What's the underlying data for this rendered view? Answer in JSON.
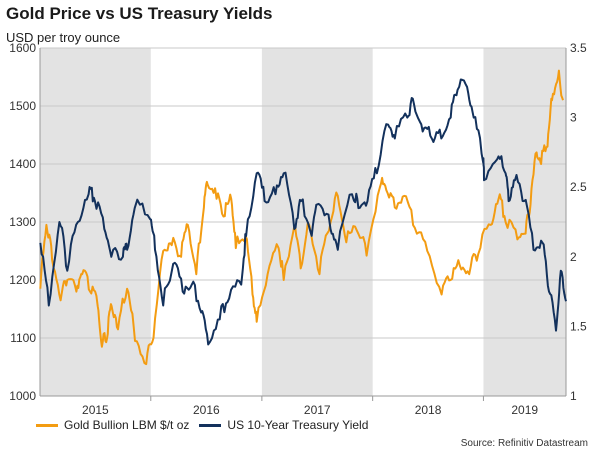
{
  "chart_data": {
    "type": "line",
    "title": "Gold Price vs US Treasury Yields",
    "subtitle": "USD per troy ounce",
    "source": "Source: Refinitiv Datastream",
    "x_ticks": [
      "2015",
      "2016",
      "2017",
      "2018",
      "2019"
    ],
    "shaded_years": [
      "2015",
      "2017",
      "2019"
    ],
    "xlim": [
      "2015-01-01",
      "2019-09-30"
    ],
    "y_left": {
      "lim": [
        1000,
        1600
      ],
      "ticks": [
        "1000",
        "1100",
        "1200",
        "1300",
        "1400",
        "1500",
        "1600"
      ]
    },
    "y_right": {
      "lim": [
        1.0,
        3.5
      ],
      "ticks": [
        "1",
        "1.5",
        "2",
        "2.5",
        "3",
        "3.5"
      ]
    },
    "grid": true,
    "legend_position": "bottom",
    "series": [
      {
        "name": "Gold Bullion LBM $/t oz",
        "axis": "left",
        "color": "#F39C12",
        "points": [
          [
            "2015-01-02",
            1185
          ],
          [
            "2015-01-22",
            1295
          ],
          [
            "2015-02-10",
            1235
          ],
          [
            "2015-03-10",
            1165
          ],
          [
            "2015-04-01",
            1200
          ],
          [
            "2015-05-01",
            1180
          ],
          [
            "2015-05-20",
            1210
          ],
          [
            "2015-06-15",
            1180
          ],
          [
            "2015-07-10",
            1155
          ],
          [
            "2015-07-24",
            1085
          ],
          [
            "2015-08-10",
            1100
          ],
          [
            "2015-08-25",
            1155
          ],
          [
            "2015-09-15",
            1115
          ],
          [
            "2015-10-15",
            1185
          ],
          [
            "2015-11-10",
            1095
          ],
          [
            "2015-12-17",
            1055
          ],
          [
            "2016-01-10",
            1100
          ],
          [
            "2016-02-11",
            1250
          ],
          [
            "2016-03-10",
            1260
          ],
          [
            "2016-04-10",
            1240
          ],
          [
            "2016-05-02",
            1295
          ],
          [
            "2016-05-30",
            1210
          ],
          [
            "2016-06-24",
            1325
          ],
          [
            "2016-07-06",
            1365
          ],
          [
            "2016-08-05",
            1340
          ],
          [
            "2016-09-01",
            1310
          ],
          [
            "2016-09-22",
            1340
          ],
          [
            "2016-10-07",
            1255
          ],
          [
            "2016-11-09",
            1275
          ],
          [
            "2016-12-01",
            1175
          ],
          [
            "2016-12-15",
            1128
          ],
          [
            "2017-01-20",
            1210
          ],
          [
            "2017-02-25",
            1255
          ],
          [
            "2017-03-14",
            1200
          ],
          [
            "2017-04-17",
            1290
          ],
          [
            "2017-05-09",
            1220
          ],
          [
            "2017-06-06",
            1295
          ],
          [
            "2017-07-10",
            1210
          ],
          [
            "2017-08-10",
            1285
          ],
          [
            "2017-09-08",
            1345
          ],
          [
            "2017-10-06",
            1265
          ],
          [
            "2017-11-10",
            1285
          ],
          [
            "2017-12-12",
            1242
          ],
          [
            "2018-01-25",
            1360
          ],
          [
            "2018-02-15",
            1355
          ],
          [
            "2018-03-15",
            1325
          ],
          [
            "2018-04-15",
            1345
          ],
          [
            "2018-05-20",
            1290
          ],
          [
            "2018-06-30",
            1250
          ],
          [
            "2018-08-16",
            1175
          ],
          [
            "2018-09-15",
            1200
          ],
          [
            "2018-10-15",
            1225
          ],
          [
            "2018-11-15",
            1210
          ],
          [
            "2018-12-15",
            1245
          ],
          [
            "2019-01-25",
            1295
          ],
          [
            "2019-02-20",
            1340
          ],
          [
            "2019-03-15",
            1300
          ],
          [
            "2019-04-23",
            1270
          ],
          [
            "2019-05-20",
            1280
          ],
          [
            "2019-06-05",
            1330
          ],
          [
            "2019-06-25",
            1420
          ],
          [
            "2019-07-10",
            1400
          ],
          [
            "2019-07-31",
            1430
          ],
          [
            "2019-08-15",
            1510
          ],
          [
            "2019-09-04",
            1550
          ],
          [
            "2019-09-20",
            1510
          ]
        ]
      },
      {
        "name": "US 10-Year Treasury Yield",
        "axis": "right",
        "color": "#13315C",
        "points": [
          [
            "2015-01-02",
            2.1
          ],
          [
            "2015-01-30",
            1.65
          ],
          [
            "2015-03-06",
            2.25
          ],
          [
            "2015-04-01",
            1.9
          ],
          [
            "2015-05-06",
            2.25
          ],
          [
            "2015-06-10",
            2.45
          ],
          [
            "2015-07-01",
            2.4
          ],
          [
            "2015-08-01",
            2.2
          ],
          [
            "2015-08-24",
            2.0
          ],
          [
            "2015-10-01",
            2.0
          ],
          [
            "2015-10-15",
            2.05
          ],
          [
            "2015-11-09",
            2.35
          ],
          [
            "2015-12-30",
            2.27
          ],
          [
            "2016-01-15",
            2.05
          ],
          [
            "2016-02-11",
            1.65
          ],
          [
            "2016-03-15",
            1.95
          ],
          [
            "2016-04-15",
            1.75
          ],
          [
            "2016-05-15",
            1.8
          ],
          [
            "2016-06-15",
            1.6
          ],
          [
            "2016-07-08",
            1.37
          ],
          [
            "2016-08-15",
            1.55
          ],
          [
            "2016-09-15",
            1.7
          ],
          [
            "2016-10-25",
            1.8
          ],
          [
            "2016-11-10",
            2.15
          ],
          [
            "2016-12-15",
            2.6
          ],
          [
            "2017-01-10",
            2.4
          ],
          [
            "2017-02-15",
            2.45
          ],
          [
            "2017-03-14",
            2.6
          ],
          [
            "2017-04-18",
            2.2
          ],
          [
            "2017-05-10",
            2.4
          ],
          [
            "2017-06-14",
            2.15
          ],
          [
            "2017-07-07",
            2.38
          ],
          [
            "2017-08-15",
            2.2
          ],
          [
            "2017-09-08",
            2.05
          ],
          [
            "2017-10-25",
            2.45
          ],
          [
            "2017-11-15",
            2.35
          ],
          [
            "2017-12-15",
            2.4
          ],
          [
            "2018-01-15",
            2.6
          ],
          [
            "2018-02-21",
            2.95
          ],
          [
            "2018-03-15",
            2.85
          ],
          [
            "2018-04-25",
            3.0
          ],
          [
            "2018-05-17",
            3.1
          ],
          [
            "2018-06-15",
            2.9
          ],
          [
            "2018-07-15",
            2.85
          ],
          [
            "2018-08-15",
            2.85
          ],
          [
            "2018-09-15",
            3.0
          ],
          [
            "2018-10-08",
            3.2
          ],
          [
            "2018-11-08",
            3.22
          ],
          [
            "2018-11-30",
            3.0
          ],
          [
            "2018-12-31",
            2.68
          ],
          [
            "2019-01-03",
            2.55
          ],
          [
            "2019-02-15",
            2.7
          ],
          [
            "2019-03-15",
            2.6
          ],
          [
            "2019-03-25",
            2.4
          ],
          [
            "2019-04-15",
            2.55
          ],
          [
            "2019-05-15",
            2.4
          ],
          [
            "2019-06-15",
            2.05
          ],
          [
            "2019-07-15",
            2.1
          ],
          [
            "2019-08-05",
            1.75
          ],
          [
            "2019-08-28",
            1.47
          ],
          [
            "2019-09-13",
            1.9
          ],
          [
            "2019-09-30",
            1.68
          ]
        ]
      }
    ]
  }
}
